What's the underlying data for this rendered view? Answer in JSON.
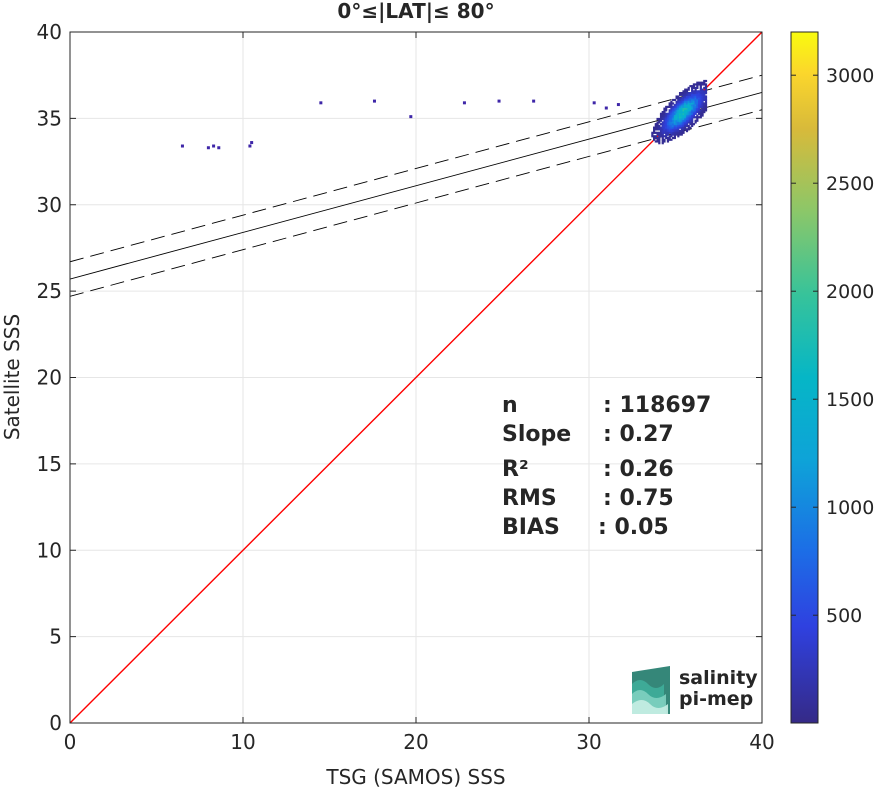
{
  "chart_data": {
    "type": "heatmap",
    "title": "0°≤|LAT|≤ 80°",
    "xlabel": "TSG (SAMOS) SSS",
    "ylabel": "Satellite SSS",
    "xlim": [
      0,
      40
    ],
    "ylim": [
      0,
      40
    ],
    "xticks": [
      "0",
      "10",
      "20",
      "30",
      "40"
    ],
    "yticks": [
      "0",
      "5",
      "10",
      "15",
      "20",
      "25",
      "30",
      "35",
      "40"
    ],
    "grid": true,
    "colorbar": {
      "range": [
        1,
        3200
      ],
      "ticks": [
        "500",
        "1000",
        "1500",
        "2000",
        "2500",
        "3000"
      ],
      "colormap": "parula"
    },
    "stats": [
      {
        "label": "n",
        "value": ": 118697"
      },
      {
        "label": "Slope",
        "value": ": 0.27"
      },
      {
        "label": "R²",
        "value": ": 0.26"
      },
      {
        "label": "RMS",
        "value": ": 0.75"
      },
      {
        "label": "BIAS",
        "value": ": 0.05"
      }
    ],
    "lines": {
      "identity": {
        "slope": 1,
        "intercept": 0,
        "color": "#ff0000"
      },
      "fit": {
        "slope": 0.27,
        "intercept": 25.7,
        "color": "#000000"
      },
      "fit_upper": {
        "slope": 0.27,
        "intercept": 26.7,
        "style": "dashed"
      },
      "fit_lower": {
        "slope": 0.27,
        "intercept": 24.7,
        "style": "dashed"
      }
    },
    "sparse_points": [
      {
        "x": 6.5,
        "y": 33.4
      },
      {
        "x": 8.0,
        "y": 33.3
      },
      {
        "x": 8.3,
        "y": 33.4
      },
      {
        "x": 8.6,
        "y": 33.3
      },
      {
        "x": 10.4,
        "y": 33.4
      },
      {
        "x": 10.5,
        "y": 33.6
      },
      {
        "x": 14.5,
        "y": 35.9
      },
      {
        "x": 17.6,
        "y": 36.0
      },
      {
        "x": 19.7,
        "y": 35.1
      },
      {
        "x": 22.8,
        "y": 35.9
      },
      {
        "x": 24.8,
        "y": 36.0
      },
      {
        "x": 26.8,
        "y": 36.0
      },
      {
        "x": 30.3,
        "y": 35.9
      },
      {
        "x": 31.7,
        "y": 35.8
      },
      {
        "x": 31.0,
        "y": 35.6
      }
    ],
    "density": {
      "x_range": [
        32.5,
        36.8
      ],
      "y_range": [
        32.9,
        37.2
      ],
      "peak": {
        "x": 35.4,
        "y": 35.3
      },
      "max_count": 3200
    }
  },
  "logo": {
    "line1": "salinity",
    "line2": "pi-mep"
  }
}
